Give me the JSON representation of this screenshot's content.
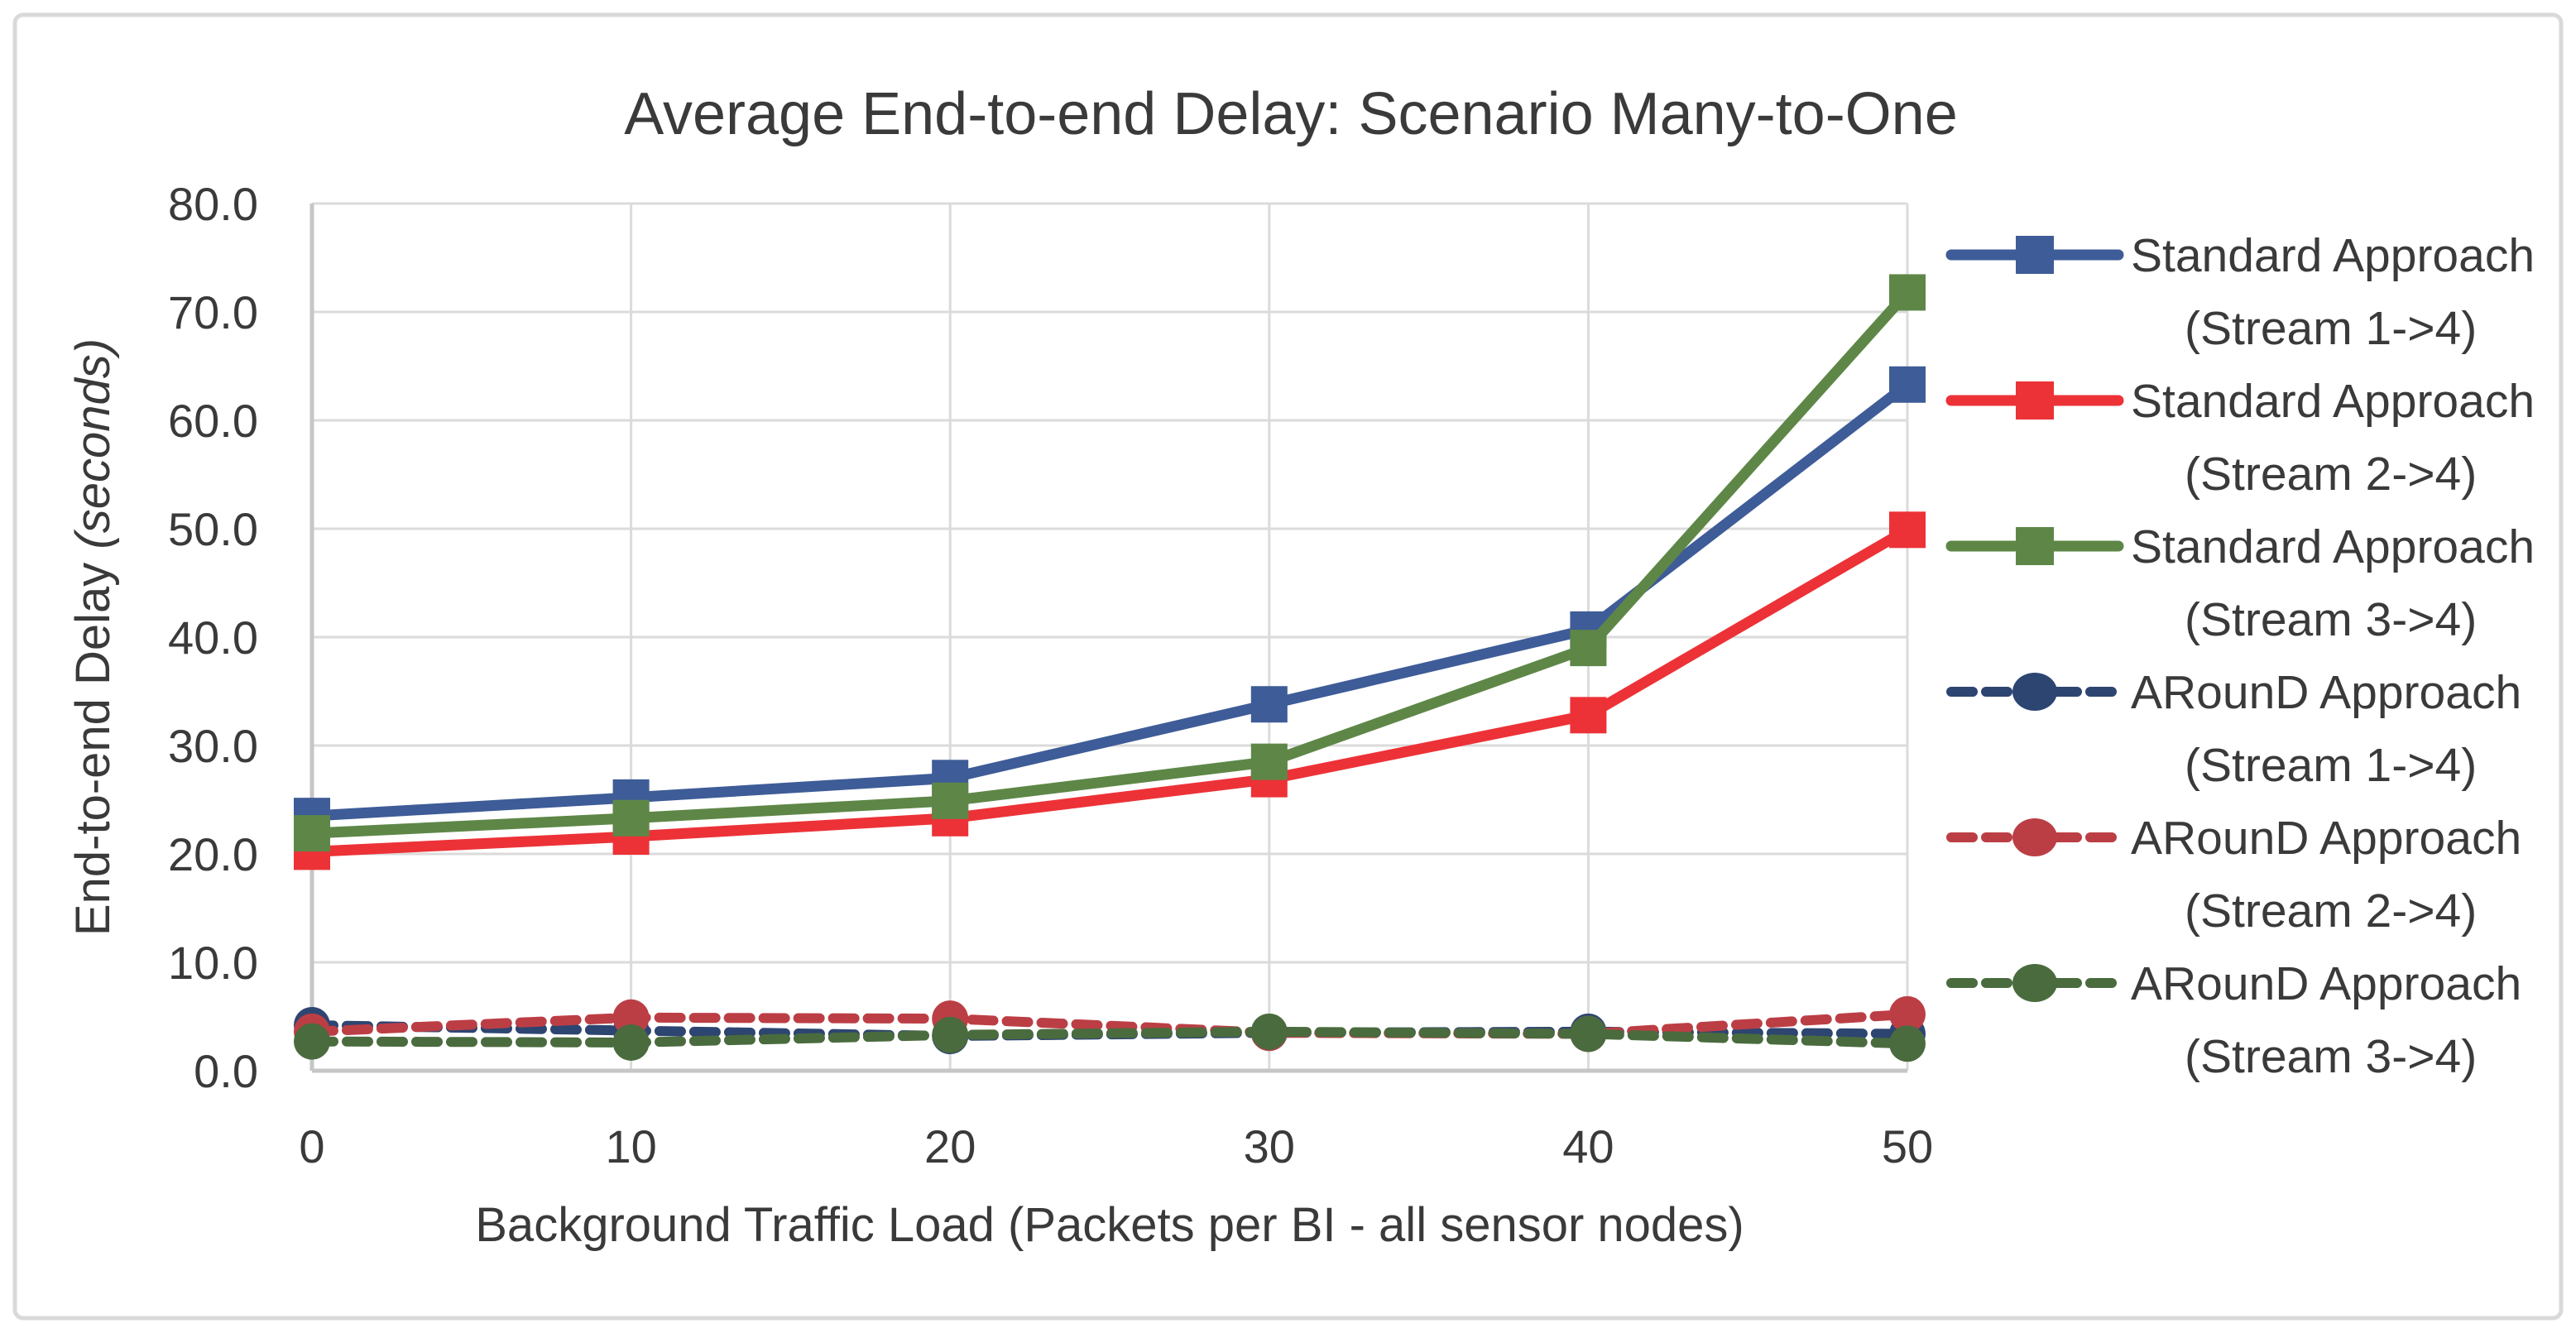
{
  "figure": {
    "background": "#FFFFFF",
    "border_color": "#D9D9D9",
    "text_color": "#3A3A3A",
    "gridline_color": "#DBDBDB",
    "axisline_color": "#C6C6C6"
  },
  "chart_data": {
    "type": "line",
    "title": "Average End-to-end Delay: Scenario Many-to-One",
    "xlabel": "Background Traffic Load (Packets per BI - all sensor nodes)",
    "ylabel_main": "End-to-end Delay ",
    "ylabel_unit": "(seconds)",
    "x": [
      0,
      10,
      20,
      30,
      40,
      50
    ],
    "xtick_labels": [
      "0",
      "10",
      "20",
      "30",
      "40",
      "50"
    ],
    "xlim": [
      0,
      50
    ],
    "ylim": [
      0,
      80
    ],
    "ytick_step": 10,
    "ytick_labels": [
      "0.0",
      "10.0",
      "20.0",
      "30.0",
      "40.0",
      "50.0",
      "60.0",
      "70.0",
      "80.0"
    ],
    "grid": true,
    "legend_position": "right",
    "series": [
      {
        "name_line1": "Standard Approach",
        "name_line2": "(Stream 1->4)",
        "color": "#3E5C97",
        "style": "solid",
        "marker": "square",
        "values": [
          23.5,
          25.2,
          27.0,
          33.8,
          40.7,
          63.3
        ]
      },
      {
        "name_line1": "Standard Approach",
        "name_line2": "(Stream 2->4)",
        "color": "#EC3237",
        "style": "solid",
        "marker": "square",
        "values": [
          20.2,
          21.6,
          23.3,
          26.9,
          32.8,
          49.9
        ]
      },
      {
        "name_line1": "Standard Approach",
        "name_line2": "(Stream 3->4)",
        "color": "#5E8747",
        "style": "solid",
        "marker": "square",
        "values": [
          21.9,
          23.3,
          24.9,
          28.5,
          39.0,
          71.8
        ]
      },
      {
        "name_line1": "ARounD Approach",
        "name_line2": "(Stream 1->4)",
        "color": "#2D4571",
        "style": "dashed",
        "marker": "circle",
        "values": [
          4.2,
          3.7,
          3.2,
          3.5,
          3.6,
          3.4
        ]
      },
      {
        "name_line1": "ARounD Approach",
        "name_line2": "(Stream 2->4)",
        "color": "#BC3E45",
        "style": "dashed",
        "marker": "circle",
        "values": [
          3.6,
          4.9,
          4.8,
          3.5,
          3.4,
          5.2
        ]
      },
      {
        "name_line1": "ARounD Approach",
        "name_line2": "(Stream 3->4)",
        "color": "#4A6B3E",
        "style": "dashed",
        "marker": "circle",
        "values": [
          2.7,
          2.6,
          3.3,
          3.6,
          3.4,
          2.5
        ]
      }
    ]
  }
}
